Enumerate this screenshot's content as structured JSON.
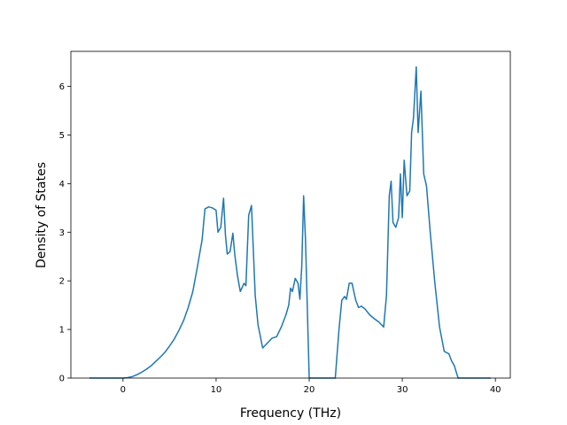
{
  "chart_data": {
    "type": "line",
    "title": "",
    "xlabel": "Frequency (THz)",
    "ylabel": "Density of States",
    "xlim": [
      -5.6,
      41.6
    ],
    "ylim": [
      0,
      6.72
    ],
    "xticks": [
      0,
      10,
      20,
      30,
      40
    ],
    "xtick_labels": [
      "0",
      "10",
      "20",
      "30",
      "40"
    ],
    "yticks": [
      0,
      1,
      2,
      3,
      4,
      5,
      6
    ],
    "ytick_labels": [
      "0",
      "1",
      "2",
      "3",
      "4",
      "5",
      "6"
    ],
    "grid": false,
    "legend": "none",
    "series": [
      {
        "color": "#1f77b4",
        "x": [
          -3.6,
          0.0,
          0.5,
          1.0,
          1.5,
          2.0,
          2.5,
          3.0,
          3.5,
          4.0,
          4.5,
          5.0,
          5.5,
          6.0,
          6.5,
          7.0,
          7.5,
          8.0,
          8.5,
          8.8,
          9.2,
          9.6,
          10.0,
          10.2,
          10.5,
          10.8,
          11.0,
          11.2,
          11.5,
          11.8,
          12.0,
          12.3,
          12.6,
          13.0,
          13.2,
          13.5,
          13.8,
          14.2,
          14.5,
          15.0,
          15.5,
          16.0,
          16.5,
          17.0,
          17.5,
          17.8,
          18.0,
          18.2,
          18.5,
          18.8,
          19.0,
          19.2,
          19.4,
          19.6,
          20.0,
          21.0,
          22.0,
          22.8,
          23.2,
          23.5,
          23.8,
          24.0,
          24.3,
          24.6,
          25.0,
          25.3,
          25.6,
          26.0,
          26.5,
          27.0,
          27.5,
          28.0,
          28.3,
          28.6,
          28.8,
          29.0,
          29.3,
          29.6,
          29.8,
          30.0,
          30.2,
          30.5,
          30.8,
          31.0,
          31.2,
          31.5,
          31.7,
          32.0,
          32.3,
          32.6,
          33.0,
          33.5,
          34.0,
          34.5,
          35.0,
          35.3,
          35.6,
          35.8,
          36.0,
          37.0,
          38.0,
          39.5
        ],
        "y": [
          0.0,
          0.0,
          0.01,
          0.03,
          0.07,
          0.12,
          0.18,
          0.25,
          0.34,
          0.43,
          0.53,
          0.66,
          0.8,
          0.98,
          1.18,
          1.45,
          1.78,
          2.3,
          2.85,
          3.48,
          3.52,
          3.5,
          3.45,
          3.0,
          3.1,
          3.7,
          2.95,
          2.55,
          2.6,
          2.98,
          2.55,
          2.1,
          1.78,
          1.95,
          1.9,
          3.35,
          3.55,
          1.7,
          1.1,
          0.62,
          0.72,
          0.82,
          0.85,
          1.05,
          1.3,
          1.5,
          1.85,
          1.78,
          2.05,
          1.95,
          1.62,
          2.3,
          3.75,
          2.85,
          0.0,
          0.0,
          0.0,
          0.0,
          1.0,
          1.6,
          1.68,
          1.62,
          1.95,
          1.95,
          1.6,
          1.45,
          1.48,
          1.42,
          1.3,
          1.22,
          1.15,
          1.05,
          1.7,
          3.75,
          4.05,
          3.2,
          3.1,
          3.3,
          4.2,
          3.3,
          4.48,
          3.75,
          3.85,
          5.05,
          5.35,
          6.4,
          5.05,
          5.9,
          4.2,
          3.95,
          3.0,
          1.95,
          1.05,
          0.55,
          0.5,
          0.35,
          0.25,
          0.12,
          0.0,
          0.0,
          0.0,
          0.0
        ]
      }
    ]
  }
}
